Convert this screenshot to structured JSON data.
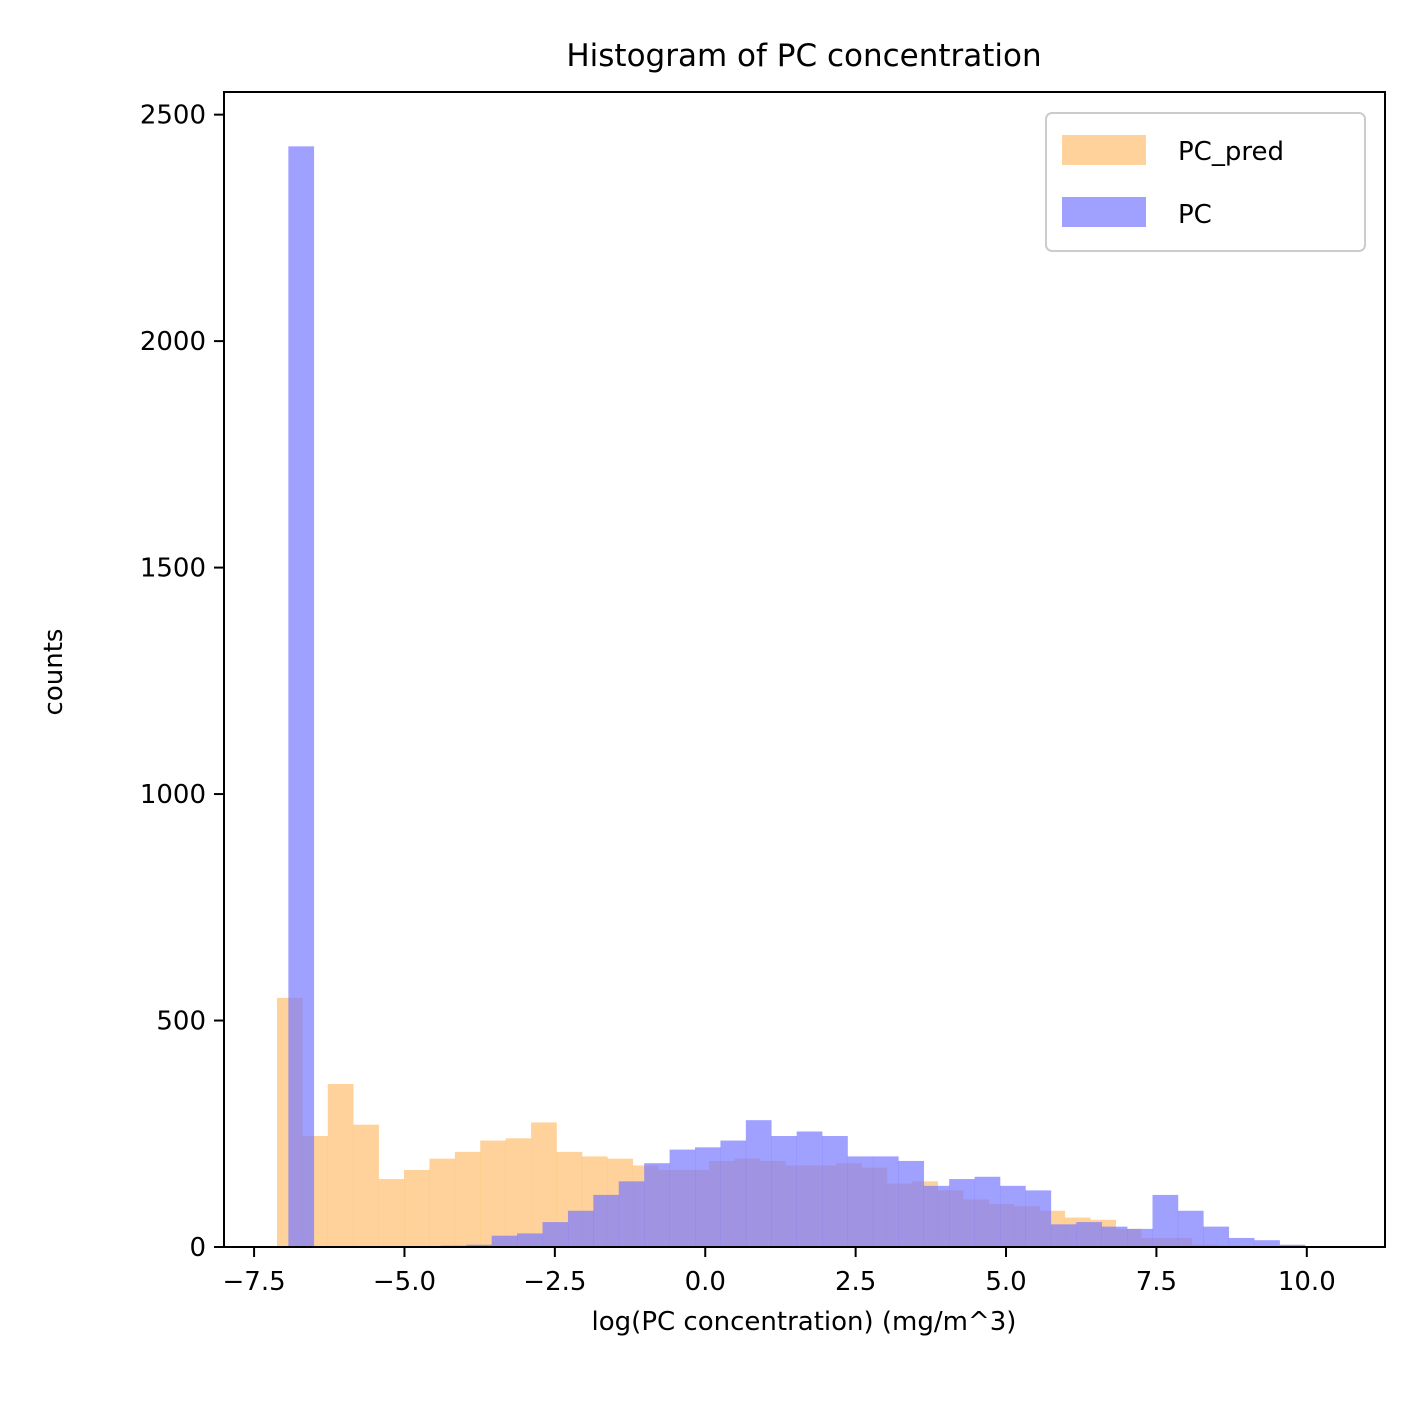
{
  "chart_data": {
    "type": "bar",
    "title": "Histogram of PC concentration",
    "xlabel": "log(PC concentration) (mg/m^3)",
    "ylabel": "counts",
    "xlim": [
      -8.0,
      11.3
    ],
    "ylim": [
      0,
      2550
    ],
    "xticks": [
      -7.5,
      -5.0,
      -2.5,
      0.0,
      2.5,
      5.0,
      7.5,
      10.0
    ],
    "xtick_labels": [
      "−7.5",
      "−5.0",
      "−2.5",
      "0.0",
      "2.5",
      "5.0",
      "7.5",
      "10.0"
    ],
    "yticks": [
      0,
      500,
      1000,
      1500,
      2000,
      2500
    ],
    "ytick_labels": [
      "0",
      "500",
      "1000",
      "1500",
      "2000",
      "2500"
    ],
    "grid": false,
    "legend_position": "top-right",
    "series": [
      {
        "name": "PC_pred",
        "color": "#fdbf6f",
        "opacity": 0.7,
        "bin_start": -7.12,
        "bin_width": 0.4225,
        "values": [
          550,
          245,
          360,
          270,
          150,
          170,
          195,
          210,
          235,
          240,
          275,
          210,
          200,
          195,
          180,
          170,
          170,
          190,
          195,
          190,
          180,
          180,
          185,
          175,
          140,
          145,
          125,
          105,
          95,
          90,
          80,
          65,
          60,
          40,
          20,
          20,
          5,
          3,
          2,
          1,
          1
        ]
      },
      {
        "name": "PC",
        "color": "#7777ff",
        "opacity": 0.7,
        "bin_start": -6.93,
        "bin_width": 0.4225,
        "values": [
          2430,
          0,
          0,
          0,
          0,
          0,
          3,
          5,
          25,
          30,
          55,
          80,
          115,
          145,
          185,
          215,
          220,
          235,
          280,
          245,
          255,
          245,
          200,
          200,
          190,
          135,
          150,
          155,
          135,
          125,
          50,
          55,
          45,
          40,
          115,
          80,
          45,
          20,
          15,
          5
        ]
      }
    ]
  }
}
